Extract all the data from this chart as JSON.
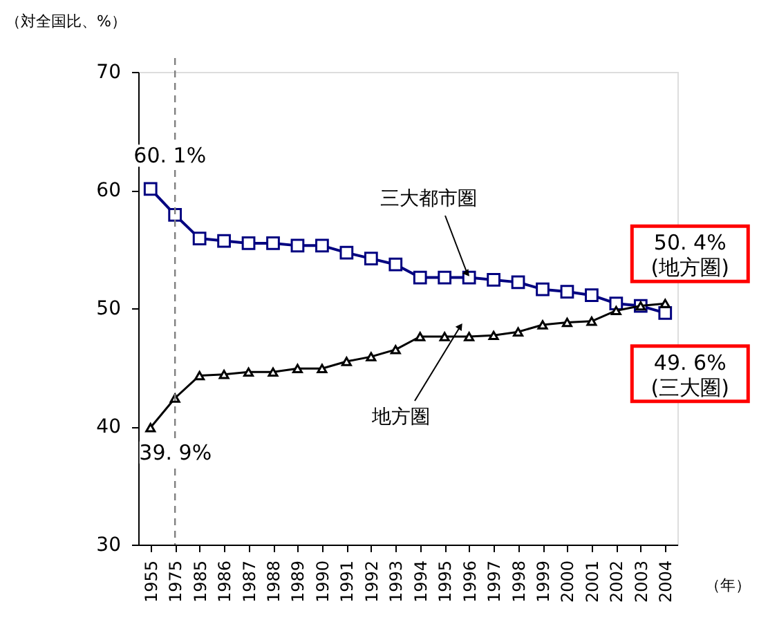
{
  "chart_data": {
    "type": "line",
    "ylabel": "（対全国比、%）",
    "xlabel": "（年）",
    "categories": [
      "1955",
      "1975",
      "1985",
      "1986",
      "1987",
      "1988",
      "1989",
      "1990",
      "1991",
      "1992",
      "1993",
      "1994",
      "1995",
      "1996",
      "1997",
      "1998",
      "1999",
      "2000",
      "2001",
      "2002",
      "2003",
      "2004"
    ],
    "series": [
      {
        "name": "三大都市圏",
        "color": "#000080",
        "marker": "square",
        "values": [
          60.1,
          57.9,
          55.9,
          55.7,
          55.5,
          55.5,
          55.3,
          55.3,
          54.7,
          54.2,
          53.7,
          52.6,
          52.6,
          52.6,
          52.4,
          52.2,
          51.6,
          51.4,
          51.1,
          50.4,
          50.2,
          49.6
        ]
      },
      {
        "name": "地方圏",
        "color": "#000000",
        "marker": "triangle",
        "values": [
          39.9,
          42.4,
          44.3,
          44.4,
          44.6,
          44.6,
          44.9,
          44.9,
          45.5,
          45.9,
          46.5,
          47.6,
          47.6,
          47.6,
          47.7,
          48.0,
          48.6,
          48.8,
          48.9,
          49.8,
          50.2,
          50.4
        ]
      }
    ],
    "ylim": [
      30,
      70
    ],
    "yticks": [
      30,
      40,
      50,
      60,
      70
    ],
    "grid": false,
    "line_style": "solid",
    "ref_lines": [
      {
        "axis": "x",
        "value": "1975",
        "color": "#808080",
        "line_style": "dashed"
      }
    ],
    "annotations": [
      {
        "text": "60. 1%",
        "x": "1955",
        "y": 60.1
      },
      {
        "text": "39. 9%",
        "x": "1955",
        "y": 39.9
      },
      {
        "text": "50. 4%\n(地方圏)",
        "x": "2004",
        "y": 50.4
      },
      {
        "text": "49. 6%\n(三大圏)",
        "x": "2004",
        "y": 49.6
      }
    ]
  }
}
